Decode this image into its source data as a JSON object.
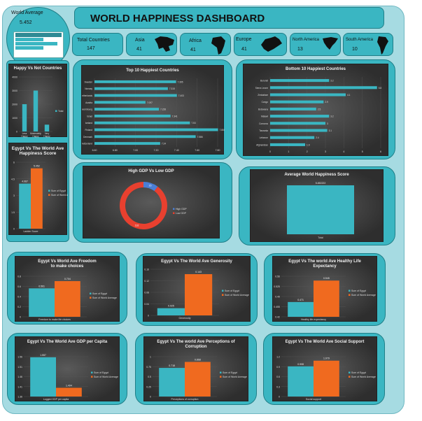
{
  "header": {
    "title": "WORLD HAPPINESS DASHBOARD"
  },
  "world_average": {
    "label": "World Average",
    "value": "5.452"
  },
  "kpis": [
    {
      "label": "Total Countries",
      "value": "147"
    },
    {
      "label": "Asia",
      "value": "41"
    },
    {
      "label": "Africa",
      "value": "41"
    },
    {
      "label": "Europe",
      "value": "41"
    },
    {
      "label": "North America",
      "value": "13"
    },
    {
      "label": "South America",
      "value": "10"
    }
  ],
  "colors": {
    "board": "#a6dbe2",
    "panel": "#3ab6c2",
    "teal_bar": "#3ab6c2",
    "orange_bar": "#f06a1f",
    "red": "#e8402f",
    "blue": "#4a7fd6"
  },
  "chart_data": [
    {
      "type": "bar",
      "title": "Happy Vs Not Countries",
      "categories": [
        "Less Happy",
        "Moderately Happy",
        "Very Happy"
      ],
      "series": [
        {
          "name": "Total",
          "values": [
            2000,
            3000,
            500
          ]
        }
      ],
      "ylim": [
        0,
        4000
      ],
      "yticks": [
        "0",
        "1000",
        "2000",
        "3000",
        "4000"
      ]
    },
    {
      "type": "bar",
      "title": "Egypt Vs The World Ave Happiness Score",
      "categories": [
        "Ladder Score"
      ],
      "series": [
        {
          "name": "Sum of Egypt",
          "values": [
            4.067
          ]
        },
        {
          "name": "Sum of World Average",
          "values": [
            5.452
          ]
        }
      ],
      "ylim": [
        0,
        6
      ],
      "xlabel": "Ladder Score"
    },
    {
      "type": "bar",
      "orientation": "horizontal",
      "title": "Top 10 Happiest Countries",
      "categories": [
        "Sweden",
        "Norway",
        "Netherlands",
        "Austria",
        "Luxembourg",
        "Israel",
        "Iceland",
        "Finland",
        "Denmark",
        "Switzerland"
      ],
      "values": [
        7.395,
        7.315,
        7.403,
        7.097,
        7.228,
        7.341,
        7.53,
        7.804,
        7.586,
        7.24
      ],
      "xlim": [
        6.6,
        7.8
      ],
      "xticks": [
        "6.60",
        "6.80",
        "7.00",
        "7.20",
        "7.40",
        "7.60",
        "7.80"
      ]
    },
    {
      "type": "bar",
      "orientation": "horizontal",
      "title": "Bottom 10 Happiest Countries",
      "categories": [
        "Burundi",
        "Sierra Leone",
        "Zimbabwe",
        "Congo",
        "Botswana",
        "Malawi",
        "Comoros",
        "Tanzania",
        "Lebanon",
        "Afghanistan"
      ],
      "values": [
        3.2,
        5.8,
        4.1,
        2.9,
        2.5,
        3.2,
        3.0,
        3.1,
        2.4,
        1.9
      ],
      "xlim": [
        0,
        6
      ],
      "xticks": [
        "0",
        "1",
        "2",
        "3",
        "4",
        "5",
        "6"
      ]
    },
    {
      "type": "pie",
      "title": "High GDP Vs Low GDP",
      "categories": [
        "High GDP",
        "Low GDP"
      ],
      "values": [
        15,
        132
      ]
    },
    {
      "type": "bar",
      "title": "Average World Happiness Score",
      "categories": [
        "Total"
      ],
      "values": [
        5.452
      ],
      "data_label": "5.452222"
    },
    {
      "type": "bar",
      "title": "Egypt Vs World Ave Freedom to make choices",
      "categories": [
        "Freedom to make life choices"
      ],
      "series": [
        {
          "name": "Sum of Egypt",
          "values": [
            0.561
          ]
        },
        {
          "name": "Sum of World Average",
          "values": [
            0.704
          ]
        }
      ],
      "ylim": [
        0,
        0.8
      ]
    },
    {
      "type": "bar",
      "title": "Egypt Vs The World Ave Generosity",
      "categories": [
        "Generosity"
      ],
      "series": [
        {
          "name": "Sum of Egypt",
          "values": [
            0.025
          ]
        },
        {
          "name": "Sum of World Average",
          "values": [
            0.143
          ]
        }
      ],
      "ylim": [
        0,
        0.16
      ]
    },
    {
      "type": "bar",
      "title": "Egypt Vs The world Ave Healthy Life Expectancy",
      "categories": [
        "Healthy life expectancy"
      ],
      "series": [
        {
          "name": "Sum of Egypt",
          "values": [
            0.471
          ]
        },
        {
          "name": "Sum of World Average",
          "values": [
            0.545
          ]
        }
      ],
      "ylim": [
        0.42,
        0.56
      ]
    },
    {
      "type": "bar",
      "title": "Egypt Vs The World Ave GDP per Capita",
      "categories": [
        "Logged GDP per capita"
      ],
      "series": [
        {
          "name": "Sum of Egypt",
          "values": [
            1.557
          ]
        },
        {
          "name": "Sum of World Average",
          "values": [
            1.404
          ]
        }
      ],
      "ylim": [
        1.36,
        1.56
      ]
    },
    {
      "type": "bar",
      "title": "Egypt Vs The world Ave Perceptions of Corruption",
      "categories": [
        "Perceptions of corruption"
      ],
      "series": [
        {
          "name": "Sum of Egypt",
          "values": [
            0.718
          ]
        },
        {
          "name": "Sum of World Average",
          "values": [
            0.868
          ]
        }
      ],
      "ylim": [
        0,
        1
      ]
    },
    {
      "type": "bar",
      "title": "Egypt Vs The World Ave Social Support",
      "categories": [
        "Social support"
      ],
      "series": [
        {
          "name": "Sum of Egypt",
          "values": [
            0.908
          ]
        },
        {
          "name": "Sum of World Average",
          "values": [
            1.079
          ]
        }
      ],
      "ylim": [
        0,
        1.2
      ]
    }
  ]
}
